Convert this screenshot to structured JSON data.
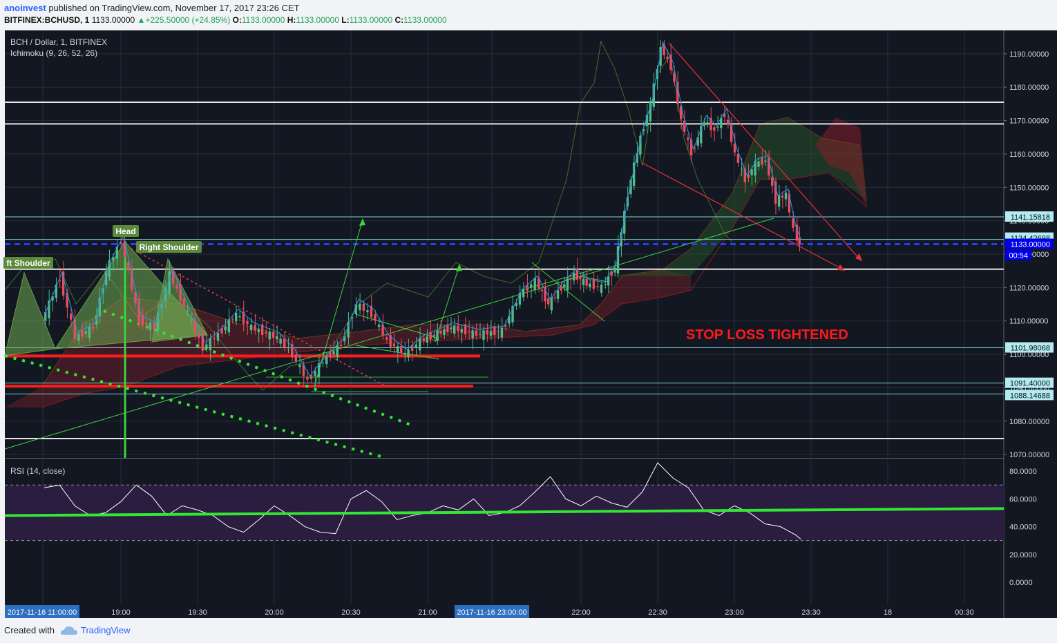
{
  "header": {
    "author": "anoinvest",
    "published_text": "published on TradingView.com, November 17, 2017 23:26 CET",
    "symbol": "BITFINEX:BCHUSD, 1",
    "last_price": "1133.00000",
    "change": "+225.50000 (+24.85%)",
    "open_label": "O:",
    "open": "1133.00000",
    "high_label": "H:",
    "high": "1133.00000",
    "low_label": "L:",
    "low": "1133.00000",
    "close_label": "C:",
    "close": "1133.00000"
  },
  "legend": {
    "title": "BCH / Dollar, 1, BITFINEX",
    "indicator": "Ichimoku (9, 26, 52, 26)",
    "rsi": "RSI (14, close)"
  },
  "annotations": {
    "left_shoulder": "ft Shoulder",
    "head": "Head",
    "right_shoulder": "Right Shoulder",
    "stop_loss": "STOP LOSS TIGHTENED"
  },
  "footer": {
    "created_with": "Created with",
    "brand": "TradingView"
  },
  "colors": {
    "background": "#131722",
    "up_candle": "#53b987",
    "down_candle": "#eb4d5c",
    "support_red": "#ff1a1a",
    "pattern_green": "#3bd53b",
    "dotted_green": "#33e633",
    "rsi_band": "#2a1d3f",
    "current_price_tag": "#0000e8"
  },
  "chart_data": [
    {
      "type": "candlestick",
      "title": "BCH / Dollar, 1, BITFINEX",
      "price_ticks": [
        "1190.00000",
        "1180.00000",
        "1170.00000",
        "1160.00000",
        "1150.00000",
        "1140.00000",
        "1130.00000",
        "1120.00000",
        "1110.00000",
        "1100.00000",
        "1090.00000",
        "1080.00000",
        "1070.00000"
      ],
      "ylim": [
        1069,
        1197
      ],
      "time_ticks": [
        "2017-11-16 11:00:00",
        "19:00",
        "19:30",
        "20:00",
        "20:30",
        "21:00",
        "2017-11-16 23:00:00",
        "22:00",
        "22:30",
        "23:00",
        "23:30",
        "18",
        "00:30"
      ],
      "price_tags": [
        {
          "label": "1141.15818",
          "value": 1141.16
        },
        {
          "label": "1134.42698",
          "value": 1134.43
        },
        {
          "label": "1133.00000",
          "value": 1133.0,
          "current": true
        },
        {
          "label": "00:54",
          "countdown": true
        },
        {
          "label": "1101.98068",
          "value": 1101.98
        },
        {
          "label": "1091.40000",
          "value": 1091.4
        },
        {
          "label": "1088.14688",
          "value": 1088.15
        }
      ],
      "horizontal_lines": [
        1175.5,
        1169.0,
        1125.5,
        1074.8
      ],
      "support_lines": [
        1099.5,
        1090.5
      ],
      "close_path": [
        {
          "t": "18:30",
          "close": 1110
        },
        {
          "t": "18:37",
          "close": 1123
        },
        {
          "t": "18:43",
          "close": 1105
        },
        {
          "t": "18:50",
          "close": 1108
        },
        {
          "t": "18:55",
          "close": 1125
        },
        {
          "t": "19:01",
          "close": 1134
        },
        {
          "t": "19:08",
          "close": 1110
        },
        {
          "t": "19:14",
          "close": 1108
        },
        {
          "t": "19:20",
          "close": 1124
        },
        {
          "t": "19:27",
          "close": 1112
        },
        {
          "t": "19:33",
          "close": 1102
        },
        {
          "t": "19:39",
          "close": 1106
        },
        {
          "t": "19:46",
          "close": 1112
        },
        {
          "t": "19:52",
          "close": 1108
        },
        {
          "t": "20:02",
          "close": 1105
        },
        {
          "t": "20:08",
          "close": 1100
        },
        {
          "t": "20:14",
          "close": 1092
        },
        {
          "t": "20:20",
          "close": 1098
        },
        {
          "t": "20:27",
          "close": 1103
        },
        {
          "t": "20:33",
          "close": 1115
        },
        {
          "t": "20:39",
          "close": 1112
        },
        {
          "t": "20:45",
          "close": 1104
        },
        {
          "t": "20:52",
          "close": 1100
        },
        {
          "t": "20:58",
          "close": 1104
        },
        {
          "t": "21:10",
          "close": 1108
        },
        {
          "t": "21:20",
          "close": 1106
        },
        {
          "t": "21:30",
          "close": 1107
        },
        {
          "t": "21:37",
          "close": 1118
        },
        {
          "t": "21:43",
          "close": 1122
        },
        {
          "t": "21:48",
          "close": 1115
        },
        {
          "t": "21:53",
          "close": 1120
        },
        {
          "t": "21:58",
          "close": 1124
        },
        {
          "t": "22:03",
          "close": 1121
        },
        {
          "t": "22:09",
          "close": 1120
        },
        {
          "t": "22:14",
          "close": 1126
        },
        {
          "t": "22:19",
          "close": 1148
        },
        {
          "t": "22:24",
          "close": 1165
        },
        {
          "t": "22:28",
          "close": 1175
        },
        {
          "t": "22:32",
          "close": 1192
        },
        {
          "t": "22:36",
          "close": 1186
        },
        {
          "t": "22:40",
          "close": 1170
        },
        {
          "t": "22:44",
          "close": 1160
        },
        {
          "t": "22:49",
          "close": 1170
        },
        {
          "t": "22:53",
          "close": 1167
        },
        {
          "t": "22:57",
          "close": 1172
        },
        {
          "t": "23:01",
          "close": 1160
        },
        {
          "t": "23:05",
          "close": 1152
        },
        {
          "t": "23:09",
          "close": 1157
        },
        {
          "t": "23:13",
          "close": 1158
        },
        {
          "t": "23:17",
          "close": 1146
        },
        {
          "t": "23:21",
          "close": 1148
        },
        {
          "t": "23:24",
          "close": 1137
        },
        {
          "t": "23:26",
          "close": 1133
        }
      ]
    },
    {
      "type": "line",
      "title": "RSI (14, close)",
      "series": [
        {
          "name": "RSI (14, close)"
        }
      ],
      "y_ticks": [
        "80.0000",
        "60.0000",
        "40.0000",
        "20.0000",
        "0.0000"
      ],
      "ylim": [
        -2,
        89
      ],
      "bands": [
        30,
        70
      ],
      "trendline": {
        "start": 48,
        "end": 53
      },
      "x": [
        "18:30",
        "18:36",
        "18:42",
        "18:48",
        "18:54",
        "19:00",
        "19:06",
        "19:12",
        "19:18",
        "19:24",
        "19:30",
        "19:36",
        "19:42",
        "19:48",
        "19:54",
        "20:00",
        "20:06",
        "20:12",
        "20:18",
        "20:24",
        "20:30",
        "20:36",
        "20:42",
        "20:48",
        "20:54",
        "21:00",
        "21:06",
        "21:12",
        "21:18",
        "21:24",
        "21:30",
        "21:36",
        "21:42",
        "21:48",
        "21:54",
        "22:00",
        "22:06",
        "22:12",
        "22:18",
        "22:24",
        "22:30",
        "22:36",
        "22:42",
        "22:48",
        "22:54",
        "23:00",
        "23:06",
        "23:12",
        "23:18",
        "23:24",
        "23:26"
      ],
      "values": [
        68,
        70,
        55,
        48,
        50,
        58,
        70,
        62,
        48,
        55,
        52,
        48,
        40,
        36,
        45,
        55,
        48,
        40,
        36,
        35,
        60,
        66,
        58,
        45,
        48,
        50,
        55,
        52,
        60,
        48,
        50,
        55,
        65,
        76,
        60,
        55,
        62,
        57,
        54,
        65,
        86,
        75,
        68,
        52,
        48,
        55,
        50,
        42,
        40,
        34,
        31
      ]
    }
  ]
}
